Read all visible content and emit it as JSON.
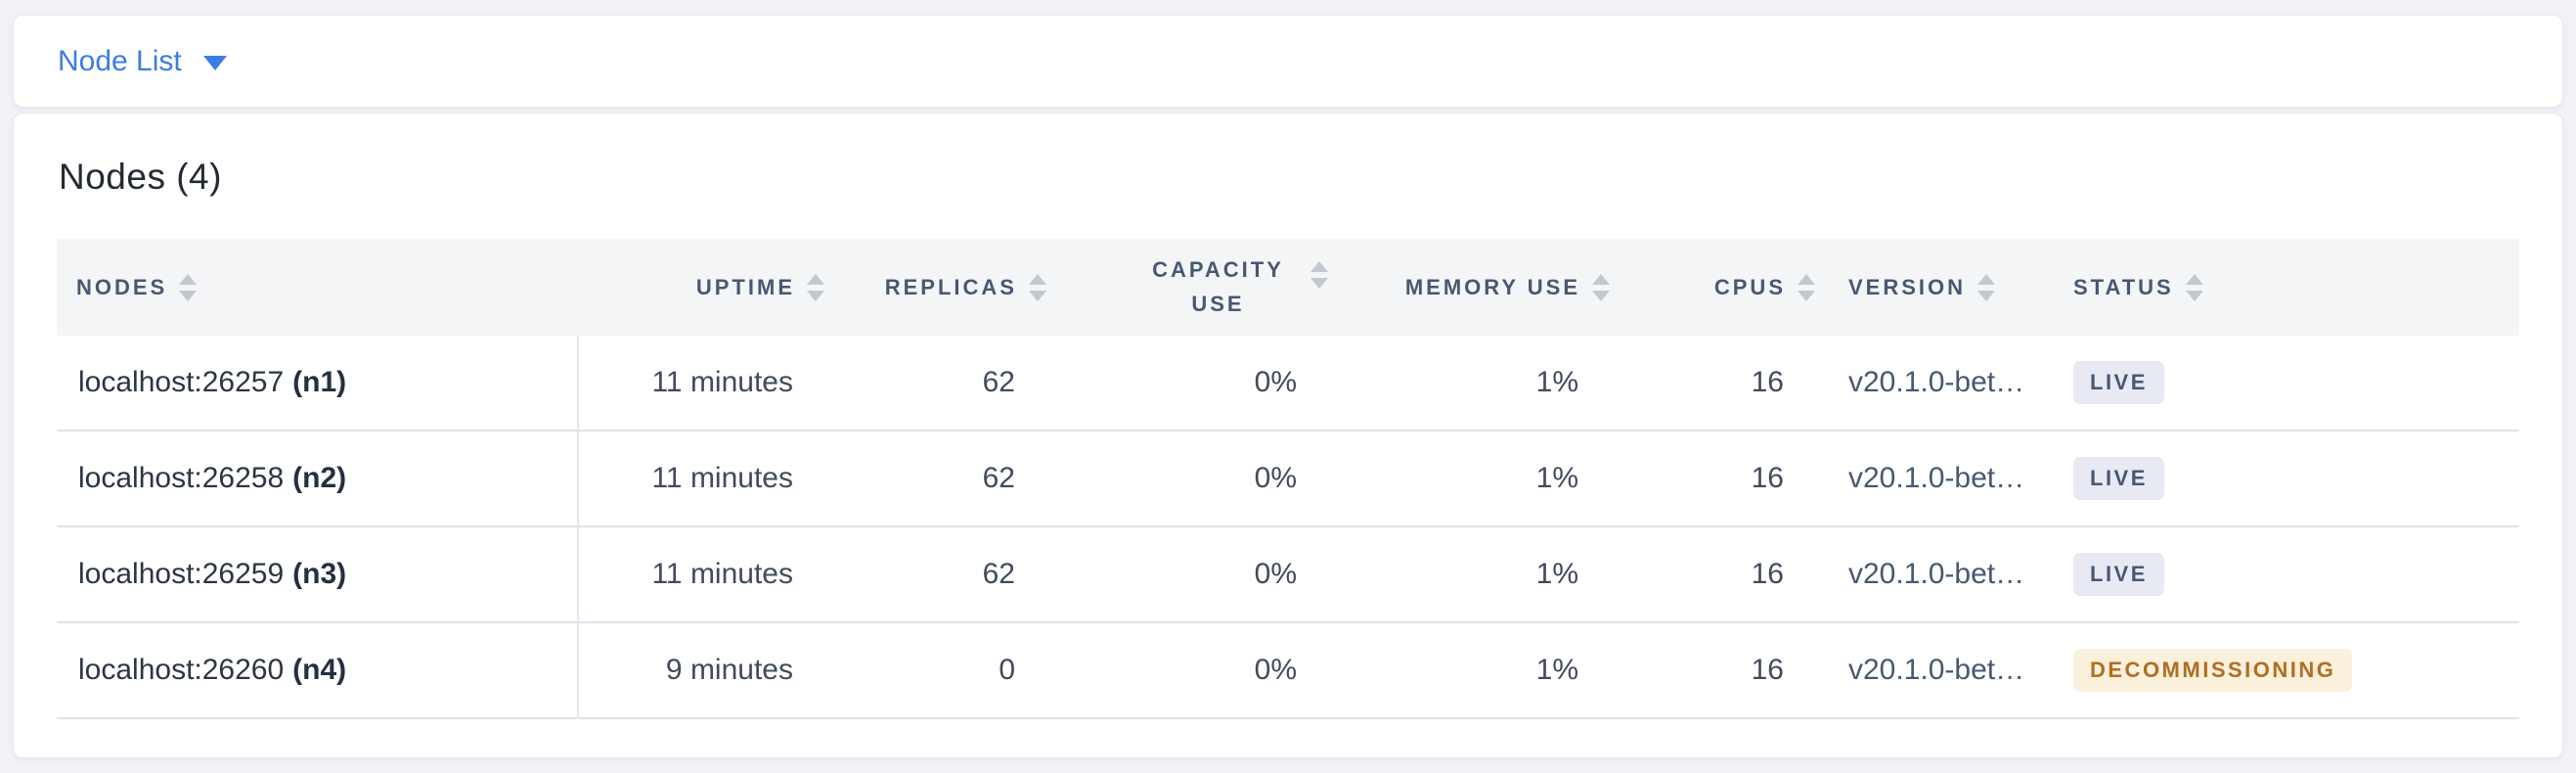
{
  "toolbar": {
    "dropdown_label": "Node List"
  },
  "card": {
    "title": "Nodes (4)",
    "table": {
      "columns": [
        {
          "label": "NODES",
          "align": "left"
        },
        {
          "label": "UPTIME",
          "align": "right"
        },
        {
          "label": "REPLICAS",
          "align": "right"
        },
        {
          "label": "CAPACITY USE",
          "align": "right"
        },
        {
          "label": "MEMORY USE",
          "align": "right"
        },
        {
          "label": "CPUS",
          "align": "right"
        },
        {
          "label": "VERSION",
          "align": "left"
        },
        {
          "label": "STATUS",
          "align": "left"
        }
      ],
      "rows": [
        {
          "address": "localhost:26257",
          "id_label": "(n1)",
          "uptime": "11 minutes",
          "replicas": "62",
          "capacity_use": "0%",
          "memory_use": "1%",
          "cpus": "16",
          "version": "v20.1.0-bet…",
          "status": "LIVE",
          "status_type": "live"
        },
        {
          "address": "localhost:26258",
          "id_label": "(n2)",
          "uptime": "11 minutes",
          "replicas": "62",
          "capacity_use": "0%",
          "memory_use": "1%",
          "cpus": "16",
          "version": "v20.1.0-bet…",
          "status": "LIVE",
          "status_type": "live"
        },
        {
          "address": "localhost:26259",
          "id_label": "(n3)",
          "uptime": "11 minutes",
          "replicas": "62",
          "capacity_use": "0%",
          "memory_use": "1%",
          "cpus": "16",
          "version": "v20.1.0-bet…",
          "status": "LIVE",
          "status_type": "live"
        },
        {
          "address": "localhost:26260",
          "id_label": "(n4)",
          "uptime": "9 minutes",
          "replicas": "0",
          "capacity_use": "0%",
          "memory_use": "1%",
          "cpus": "16",
          "version": "v20.1.0-bet…",
          "status": "DECOMMISSIONING",
          "status_type": "decommissioning"
        }
      ]
    }
  },
  "colors": {
    "accent": "#3b7ce6",
    "live_bg": "#e7eaf3",
    "live_text": "#475872",
    "decom_bg": "#faf0dc",
    "decom_text": "#b06e20"
  }
}
